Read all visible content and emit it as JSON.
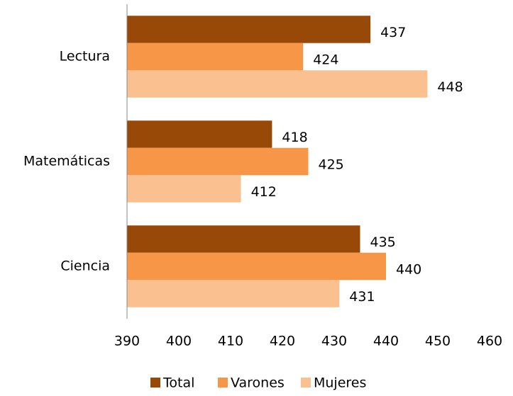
{
  "chart_data": {
    "type": "barh",
    "categories": [
      "Lectura",
      "Matemáticas",
      "Ciencia"
    ],
    "series": [
      {
        "name": "Total",
        "color": "#984807",
        "values": [
          437,
          418,
          435
        ]
      },
      {
        "name": "Varones",
        "color": "#f79646",
        "values": [
          424,
          425,
          440
        ]
      },
      {
        "name": "Mujeres",
        "color": "#fac090",
        "values": [
          448,
          412,
          431
        ]
      }
    ],
    "xlim": [
      390,
      460
    ],
    "xticks": [
      390,
      400,
      410,
      420,
      430,
      440,
      450,
      460
    ],
    "legend": "bottom"
  }
}
